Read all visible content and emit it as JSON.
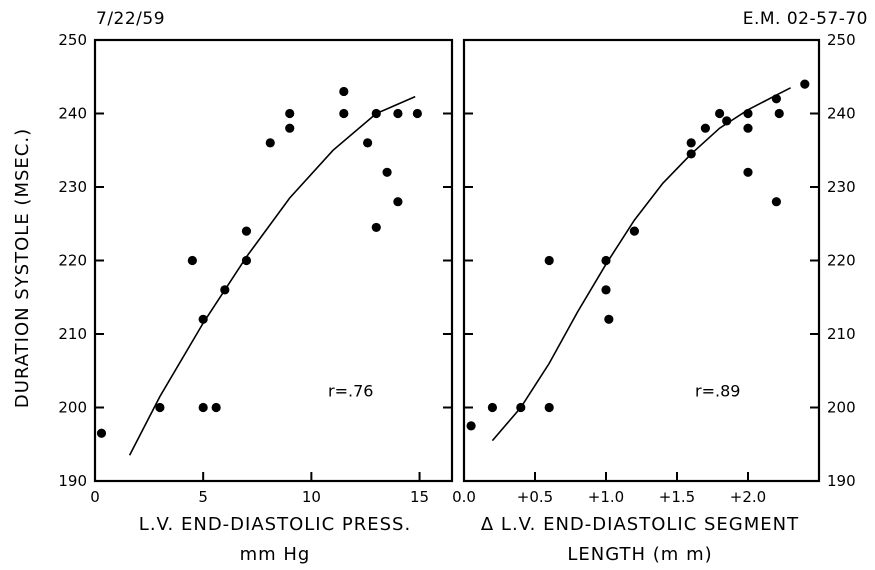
{
  "header": {
    "left": "7/22/59",
    "right": "E.M. 02-57-70"
  },
  "chart_data": [
    {
      "type": "scatter",
      "title": "",
      "xlabel": "L.V. END-DIASTOLIC PRESS.",
      "xlabel2": "mm Hg",
      "ylabel": "DURATION SYSTOLE (MSEC.)",
      "xlim": [
        0,
        16.5
      ],
      "ylim": [
        190,
        250
      ],
      "xticks": [
        0,
        5,
        10,
        15
      ],
      "xtick_labels": [
        "0",
        "5",
        "10",
        "15"
      ],
      "yticks": [
        190,
        200,
        210,
        220,
        230,
        240,
        250
      ],
      "ytick_labels": [
        "190",
        "200",
        "210",
        "220",
        "230",
        "240",
        "250"
      ],
      "annotation": "r=.76",
      "points": [
        [
          0.3,
          196.5
        ],
        [
          3.0,
          200
        ],
        [
          4.5,
          220
        ],
        [
          5.0,
          212
        ],
        [
          5.0,
          200
        ],
        [
          5.6,
          200
        ],
        [
          6.0,
          216
        ],
        [
          7.0,
          224
        ],
        [
          7.0,
          220
        ],
        [
          8.1,
          236
        ],
        [
          9.0,
          240
        ],
        [
          9.0,
          238
        ],
        [
          11.5,
          243
        ],
        [
          11.5,
          240
        ],
        [
          12.6,
          236
        ],
        [
          13.0,
          240
        ],
        [
          13.0,
          224.5
        ],
        [
          13.5,
          232
        ],
        [
          14.0,
          240
        ],
        [
          14.0,
          228
        ],
        [
          14.9,
          240
        ]
      ],
      "fit_curve": [
        [
          1.6,
          193.5
        ],
        [
          3,
          201.5
        ],
        [
          5,
          211.5
        ],
        [
          7,
          220.5
        ],
        [
          9,
          228.5
        ],
        [
          11,
          235
        ],
        [
          13,
          240
        ],
        [
          14.8,
          242.3
        ]
      ],
      "grid": false
    },
    {
      "type": "scatter",
      "title": "",
      "xlabel": "Δ L.V. END-DIASTOLIC SEGMENT",
      "xlabel2": "LENGTH (m m)",
      "ylabel": "",
      "xlim": [
        0,
        2.5
      ],
      "ylim": [
        190,
        250
      ],
      "xticks": [
        0,
        0.5,
        1.0,
        1.5,
        2.0
      ],
      "xtick_labels": [
        "0.0",
        "+0.5",
        "+1.0",
        "+1.5",
        "+2.0"
      ],
      "yticks": [
        190,
        200,
        210,
        220,
        230,
        240,
        250
      ],
      "ytick_labels": [
        "190",
        "200",
        "210",
        "220",
        "230",
        "240",
        "250"
      ],
      "annotation": "r=.89",
      "points": [
        [
          0.05,
          197.5
        ],
        [
          0.2,
          200
        ],
        [
          0.4,
          200
        ],
        [
          0.6,
          220
        ],
        [
          0.6,
          200
        ],
        [
          1.0,
          220
        ],
        [
          1.0,
          216
        ],
        [
          1.02,
          212
        ],
        [
          1.2,
          224
        ],
        [
          1.6,
          236
        ],
        [
          1.6,
          234.5
        ],
        [
          1.7,
          238
        ],
        [
          1.8,
          240
        ],
        [
          1.85,
          239
        ],
        [
          2.0,
          240
        ],
        [
          2.0,
          238
        ],
        [
          2.0,
          232
        ],
        [
          2.2,
          242
        ],
        [
          2.22,
          240
        ],
        [
          2.2,
          228
        ],
        [
          2.4,
          244
        ]
      ],
      "fit_curve": [
        [
          0.2,
          195.5
        ],
        [
          0.4,
          200
        ],
        [
          0.6,
          206
        ],
        [
          0.8,
          213
        ],
        [
          1.0,
          219.5
        ],
        [
          1.2,
          225.5
        ],
        [
          1.4,
          230.5
        ],
        [
          1.6,
          234.5
        ],
        [
          1.8,
          238
        ],
        [
          2.0,
          240.5
        ],
        [
          2.2,
          242.5
        ],
        [
          2.3,
          243.5
        ]
      ],
      "grid": false
    }
  ]
}
